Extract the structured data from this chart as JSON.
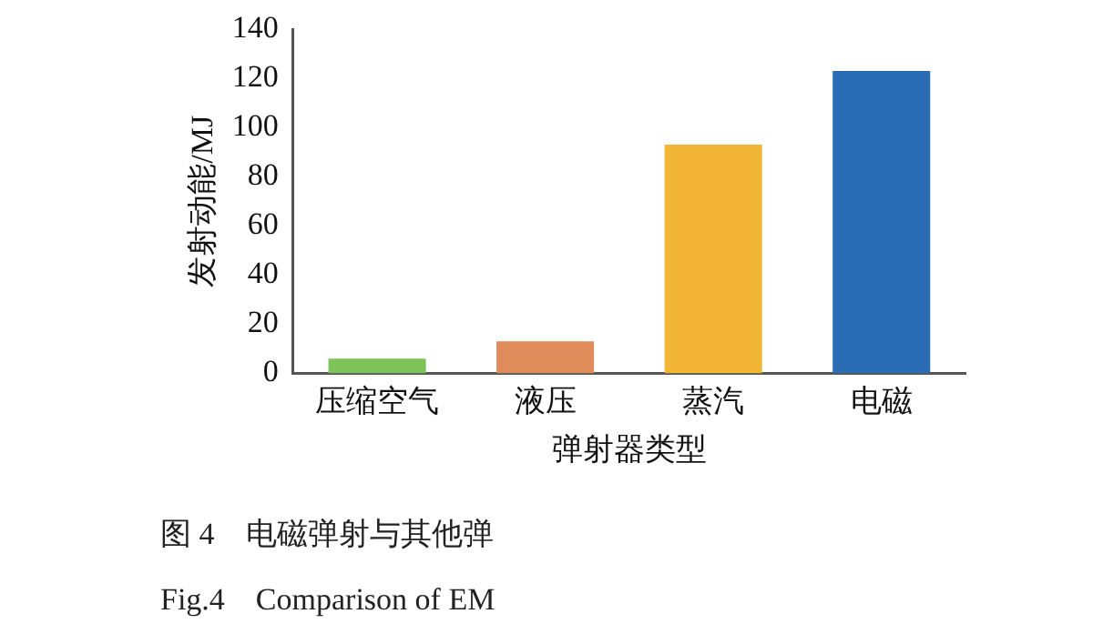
{
  "chart_data": {
    "type": "bar",
    "xlabel": "弹射器类型",
    "ylabel": "发射动能/MJ",
    "categories": [
      "压缩空气",
      "液压",
      "蒸汽",
      "电磁"
    ],
    "values": [
      6,
      13,
      93,
      123
    ],
    "colors": [
      "#7dc35a",
      "#e08b5a",
      "#f2b535",
      "#2a6db5"
    ],
    "ylim": [
      0,
      140
    ],
    "yticks": [
      0,
      20,
      40,
      60,
      80,
      100,
      120,
      140
    ],
    "grid": false,
    "legend": false,
    "annotations": [
      "图 4　电磁弹射与其他弹",
      "Fig.4　Comparison of EM"
    ]
  }
}
